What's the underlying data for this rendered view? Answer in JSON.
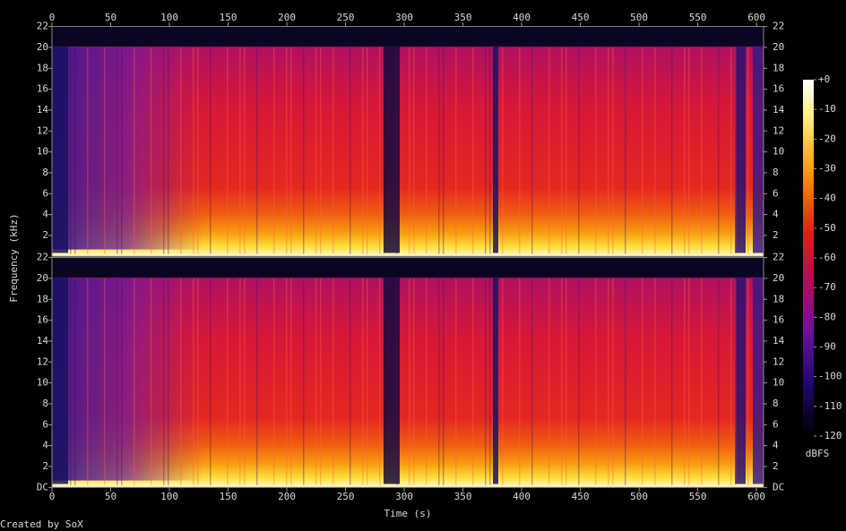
{
  "chart_data": {
    "type": "spectrogram",
    "xlabel": "Time (s)",
    "ylabel": "Frequency (kHz)",
    "xlim": [
      0,
      606
    ],
    "xticks": [
      0,
      50,
      100,
      150,
      200,
      250,
      300,
      350,
      400,
      450,
      500,
      550,
      600
    ],
    "channels": [
      {
        "ylim": [
          0,
          22
        ],
        "yticks": [
          2,
          4,
          6,
          8,
          10,
          12,
          14,
          16,
          18,
          20,
          22
        ]
      },
      {
        "ylim": [
          0,
          22
        ],
        "yticks": [
          {
            "value": 0,
            "label": "DC"
          },
          2,
          4,
          6,
          8,
          10,
          12,
          14,
          16,
          18,
          20,
          22
        ]
      }
    ],
    "colorbar": {
      "label": "dBFS",
      "lim": [
        -120,
        0
      ],
      "ticks": [
        {
          "value": 0,
          "label": "+0"
        },
        -10,
        -20,
        -30,
        -40,
        -50,
        -60,
        -70,
        -80,
        -90,
        -100,
        -110,
        -120
      ]
    },
    "footer": "Created by SoX"
  }
}
